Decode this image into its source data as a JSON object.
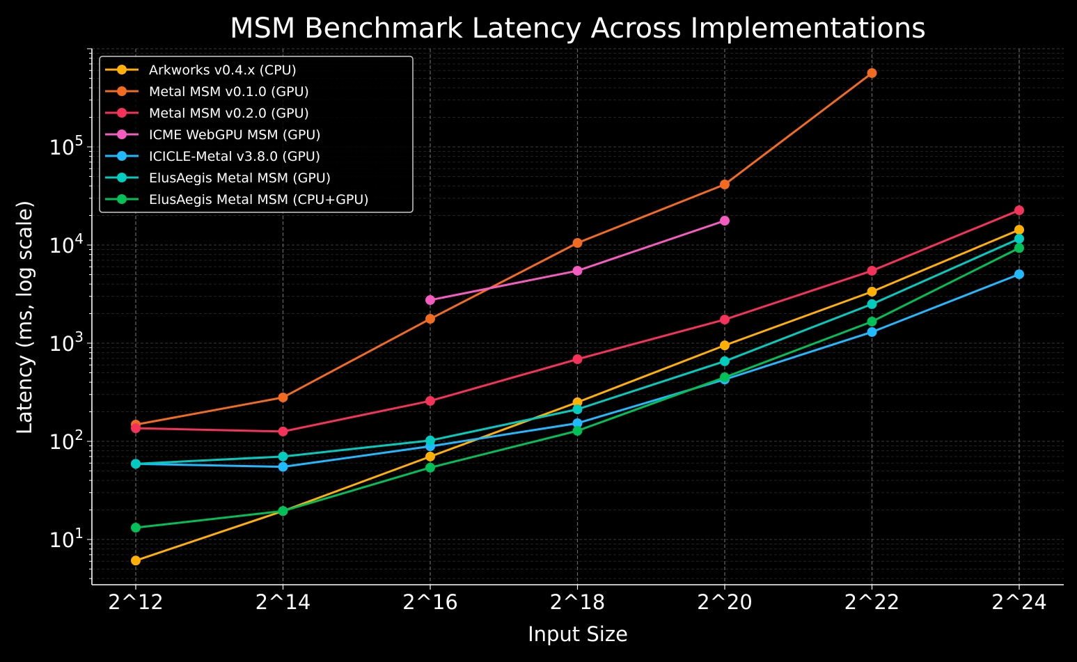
{
  "chart_data": {
    "type": "line",
    "title": "MSM Benchmark Latency Across Implementations",
    "xlabel": "Input Size",
    "ylabel": "Latency (ms, log scale)",
    "y_scale": "log",
    "ylim": [
      3.46,
      1000000
    ],
    "grid": true,
    "legend_position": "top-left",
    "categories": [
      "2^12",
      "2^14",
      "2^16",
      "2^18",
      "2^20",
      "2^22",
      "2^24"
    ],
    "y_ticks": [
      {
        "value": 10,
        "base": "10",
        "exp": "1"
      },
      {
        "value": 100,
        "base": "10",
        "exp": "2"
      },
      {
        "value": 1000,
        "base": "10",
        "exp": "3"
      },
      {
        "value": 10000,
        "base": "10",
        "exp": "4"
      },
      {
        "value": 100000,
        "base": "10",
        "exp": "5"
      }
    ],
    "series": [
      {
        "name": "Arkworks v0.4.x (CPU)",
        "color": "#FFB000",
        "values": [
          6.1,
          19.5,
          70,
          250,
          950,
          3350,
          14300
        ]
      },
      {
        "name": "Metal MSM v0.1.0 (GPU)",
        "color": "#F26B21",
        "values": [
          148,
          280,
          1770,
          10500,
          41400,
          565000,
          null
        ]
      },
      {
        "name": "Metal MSM v0.2.0 (GPU)",
        "color": "#F5325A",
        "values": [
          136,
          126,
          258,
          687,
          1740,
          5470,
          22600
        ]
      },
      {
        "name": "ICME WebGPU MSM (GPU)",
        "color": "#F55CC0",
        "values": [
          null,
          null,
          2750,
          5470,
          17700,
          null,
          null
        ]
      },
      {
        "name": "ICICLE-Metal v3.8.0 (GPU)",
        "color": "#1FBAFF",
        "values": [
          59,
          55,
          89,
          153,
          427,
          1300,
          5040
        ]
      },
      {
        "name": "ElusAegis Metal MSM (GPU)",
        "color": "#00CCC0",
        "values": [
          59,
          70,
          102,
          212,
          655,
          2500,
          11600
        ]
      },
      {
        "name": "ElusAegis Metal MSM (CPU+GPU)",
        "color": "#00C058",
        "values": [
          13.2,
          19.5,
          54,
          128,
          449,
          1660,
          9330
        ]
      }
    ]
  }
}
